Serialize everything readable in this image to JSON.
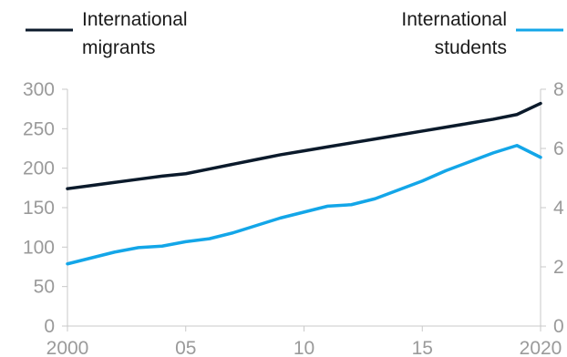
{
  "chart_data": {
    "type": "line",
    "title": "",
    "xlabel": "",
    "ylabel": "",
    "x": [
      2000,
      2001,
      2002,
      2003,
      2004,
      2005,
      2006,
      2007,
      2008,
      2009,
      2010,
      2011,
      2012,
      2013,
      2014,
      2015,
      2016,
      2017,
      2018,
      2019,
      2020
    ],
    "x_ticks": [
      "2000",
      "05",
      "10",
      "15",
      "2020"
    ],
    "x_tick_values": [
      2000,
      2005,
      2010,
      2015,
      2020
    ],
    "xlim": [
      2000,
      2020
    ],
    "ylim_left": [
      0,
      300
    ],
    "y_ticks_left": [
      "0",
      "50",
      "100",
      "150",
      "200",
      "250",
      "300"
    ],
    "ylim_right": [
      0,
      8
    ],
    "y_ticks_right": [
      "0",
      "2",
      "4",
      "6",
      "8"
    ],
    "grid": false,
    "legend_placement": "top",
    "series": [
      {
        "name": "International migrants",
        "axis": "left",
        "color": "#0b1a2b",
        "values": [
          174,
          178,
          182,
          186,
          190,
          193,
          199,
          205,
          211,
          217,
          222,
          227,
          232,
          237,
          242,
          247,
          252,
          257,
          262,
          268,
          282
        ]
      },
      {
        "name": "International students",
        "axis": "right",
        "color": "#13a6e8",
        "values": [
          2.1,
          2.3,
          2.5,
          2.65,
          2.7,
          2.85,
          2.95,
          3.15,
          3.4,
          3.65,
          3.85,
          4.05,
          4.1,
          4.3,
          4.6,
          4.9,
          5.25,
          5.55,
          5.85,
          6.1,
          5.7
        ]
      }
    ]
  },
  "legend": {
    "migrants_line1": "International",
    "migrants_line2": "migrants",
    "students_line1": "International",
    "students_line2": "students"
  }
}
